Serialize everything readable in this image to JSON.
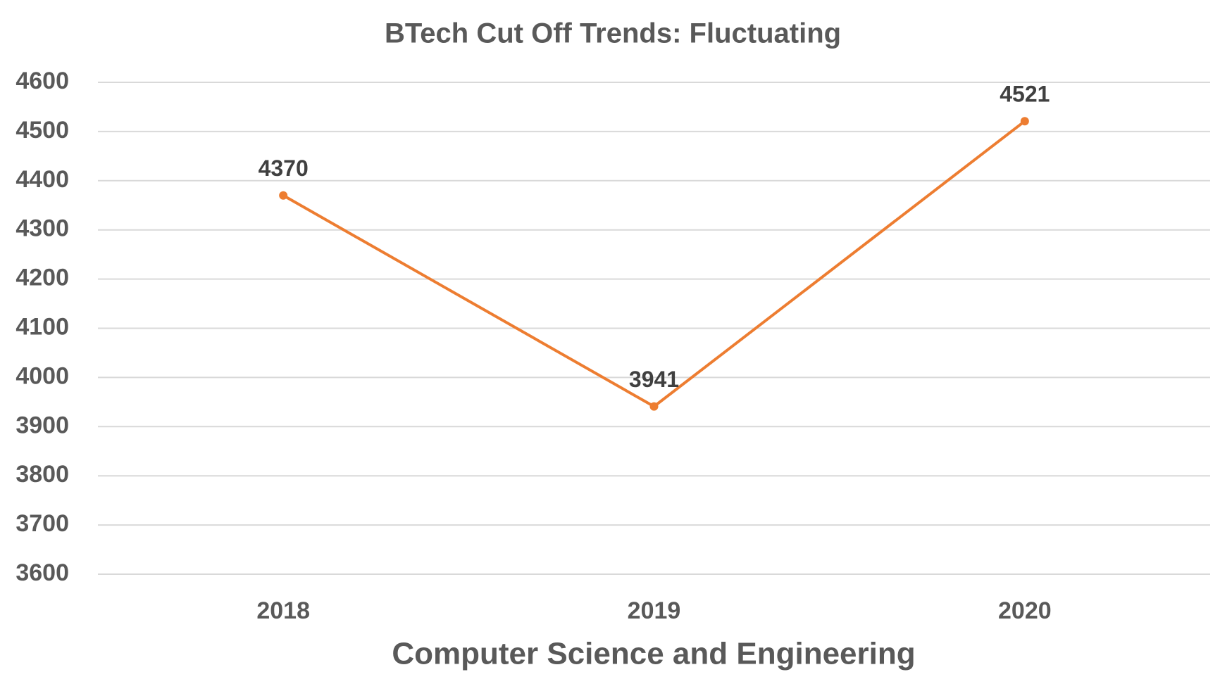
{
  "chart_data": {
    "type": "line",
    "title": "BTech Cut Off Trends: Fluctuating",
    "x_label": "Computer Science and Engineering",
    "categories": [
      "2018",
      "2019",
      "2020"
    ],
    "values": [
      4370,
      3941,
      4521
    ],
    "color": "#ed7d31",
    "ylim": [
      3600,
      4600
    ],
    "yticks": [
      3600,
      3700,
      3800,
      3900,
      4000,
      4100,
      4200,
      4300,
      4400,
      4500,
      4600
    ],
    "grid": true
  }
}
